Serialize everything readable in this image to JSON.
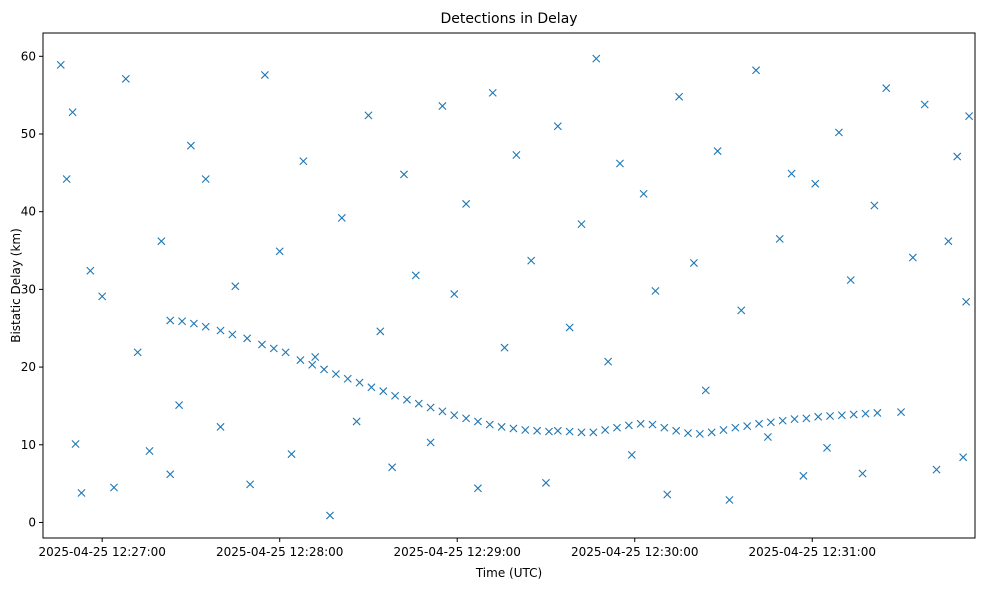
{
  "chart_data": {
    "type": "scatter",
    "title": "Detections in Delay",
    "xlabel": "Time (UTC)",
    "ylabel": "Bistatic Delay (km)",
    "x_ticks": [
      "2025-04-25 12:27:00",
      "2025-04-25 12:28:00",
      "2025-04-25 12:29:00",
      "2025-04-25 12:30:00",
      "2025-04-25 12:31:00"
    ],
    "y_ticks": [
      0,
      10,
      20,
      30,
      40,
      50,
      60
    ],
    "xlim": [
      "2025-04-25 12:26:40",
      "2025-04-25 12:31:55"
    ],
    "ylim": [
      -2,
      63
    ],
    "grid": false,
    "marker": "x",
    "color": "#1f77b4",
    "series": [
      {
        "points": [
          [
            "2025-04-25 12:26:46",
            58.9
          ],
          [
            "2025-04-25 12:26:48",
            44.2
          ],
          [
            "2025-04-25 12:26:50",
            52.8
          ],
          [
            "2025-04-25 12:26:51",
            10.1
          ],
          [
            "2025-04-25 12:26:53",
            3.8
          ],
          [
            "2025-04-25 12:26:56",
            32.4
          ],
          [
            "2025-04-25 12:27:00",
            29.1
          ],
          [
            "2025-04-25 12:27:04",
            4.5
          ],
          [
            "2025-04-25 12:27:08",
            57.1
          ],
          [
            "2025-04-25 12:27:12",
            21.9
          ],
          [
            "2025-04-25 12:27:16",
            9.2
          ],
          [
            "2025-04-25 12:27:20",
            36.2
          ],
          [
            "2025-04-25 12:27:23",
            6.2
          ],
          [
            "2025-04-25 12:27:26",
            15.1
          ],
          [
            "2025-04-25 12:27:30",
            48.5
          ],
          [
            "2025-04-25 12:27:35",
            44.2
          ],
          [
            "2025-04-25 12:27:40",
            12.3
          ],
          [
            "2025-04-25 12:27:45",
            30.4
          ],
          [
            "2025-04-25 12:27:50",
            4.9
          ],
          [
            "2025-04-25 12:27:55",
            57.6
          ],
          [
            "2025-04-25 12:28:00",
            34.9
          ],
          [
            "2025-04-25 12:28:04",
            8.8
          ],
          [
            "2025-04-25 12:28:08",
            46.5
          ],
          [
            "2025-04-25 12:28:12",
            21.3
          ],
          [
            "2025-04-25 12:28:17",
            0.9
          ],
          [
            "2025-04-25 12:28:21",
            39.2
          ],
          [
            "2025-04-25 12:28:26",
            13.0
          ],
          [
            "2025-04-25 12:28:30",
            52.4
          ],
          [
            "2025-04-25 12:28:34",
            24.6
          ],
          [
            "2025-04-25 12:28:38",
            7.1
          ],
          [
            "2025-04-25 12:28:42",
            44.8
          ],
          [
            "2025-04-25 12:28:46",
            31.8
          ],
          [
            "2025-04-25 12:28:51",
            10.3
          ],
          [
            "2025-04-25 12:28:55",
            53.6
          ],
          [
            "2025-04-25 12:28:59",
            29.4
          ],
          [
            "2025-04-25 12:29:03",
            41.0
          ],
          [
            "2025-04-25 12:29:07",
            4.4
          ],
          [
            "2025-04-25 12:29:12",
            55.3
          ],
          [
            "2025-04-25 12:29:16",
            22.5
          ],
          [
            "2025-04-25 12:29:20",
            47.3
          ],
          [
            "2025-04-25 12:29:25",
            33.7
          ],
          [
            "2025-04-25 12:29:30",
            5.1
          ],
          [
            "2025-04-25 12:29:34",
            51.0
          ],
          [
            "2025-04-25 12:29:38",
            25.1
          ],
          [
            "2025-04-25 12:29:42",
            38.4
          ],
          [
            "2025-04-25 12:29:47",
            59.7
          ],
          [
            "2025-04-25 12:29:51",
            20.7
          ],
          [
            "2025-04-25 12:29:55",
            46.2
          ],
          [
            "2025-04-25 12:29:59",
            8.7
          ],
          [
            "2025-04-25 12:30:03",
            42.3
          ],
          [
            "2025-04-25 12:30:07",
            29.8
          ],
          [
            "2025-04-25 12:30:11",
            3.6
          ],
          [
            "2025-04-25 12:30:15",
            54.8
          ],
          [
            "2025-04-25 12:30:20",
            33.4
          ],
          [
            "2025-04-25 12:30:24",
            17.0
          ],
          [
            "2025-04-25 12:30:28",
            47.8
          ],
          [
            "2025-04-25 12:30:32",
            2.9
          ],
          [
            "2025-04-25 12:30:36",
            27.3
          ],
          [
            "2025-04-25 12:30:41",
            58.2
          ],
          [
            "2025-04-25 12:30:45",
            11.0
          ],
          [
            "2025-04-25 12:30:49",
            36.5
          ],
          [
            "2025-04-25 12:30:53",
            44.9
          ],
          [
            "2025-04-25 12:30:57",
            6.0
          ],
          [
            "2025-04-25 12:31:01",
            43.6
          ],
          [
            "2025-04-25 12:31:05",
            9.6
          ],
          [
            "2025-04-25 12:31:09",
            50.2
          ],
          [
            "2025-04-25 12:31:13",
            31.2
          ],
          [
            "2025-04-25 12:31:17",
            6.3
          ],
          [
            "2025-04-25 12:31:21",
            40.8
          ],
          [
            "2025-04-25 12:31:25",
            55.9
          ],
          [
            "2025-04-25 12:31:30",
            14.2
          ],
          [
            "2025-04-25 12:31:34",
            34.1
          ],
          [
            "2025-04-25 12:31:38",
            53.8
          ],
          [
            "2025-04-25 12:31:42",
            6.8
          ],
          [
            "2025-04-25 12:31:46",
            36.2
          ],
          [
            "2025-04-25 12:31:49",
            47.1
          ],
          [
            "2025-04-25 12:31:51",
            8.4
          ],
          [
            "2025-04-25 12:31:52",
            28.4
          ],
          [
            "2025-04-25 12:31:53",
            52.3
          ]
        ]
      },
      {
        "points": [
          [
            "2025-04-25 12:27:23",
            26.0
          ],
          [
            "2025-04-25 12:27:27",
            25.9
          ],
          [
            "2025-04-25 12:27:31",
            25.6
          ],
          [
            "2025-04-25 12:27:35",
            25.2
          ],
          [
            "2025-04-25 12:27:40",
            24.7
          ],
          [
            "2025-04-25 12:27:44",
            24.2
          ],
          [
            "2025-04-25 12:27:49",
            23.7
          ],
          [
            "2025-04-25 12:27:54",
            22.9
          ],
          [
            "2025-04-25 12:27:58",
            22.4
          ],
          [
            "2025-04-25 12:28:02",
            21.9
          ],
          [
            "2025-04-25 12:28:07",
            20.9
          ],
          [
            "2025-04-25 12:28:11",
            20.3
          ],
          [
            "2025-04-25 12:28:15",
            19.7
          ],
          [
            "2025-04-25 12:28:19",
            19.1
          ],
          [
            "2025-04-25 12:28:23",
            18.5
          ],
          [
            "2025-04-25 12:28:27",
            18.0
          ],
          [
            "2025-04-25 12:28:31",
            17.4
          ],
          [
            "2025-04-25 12:28:35",
            16.9
          ],
          [
            "2025-04-25 12:28:39",
            16.3
          ],
          [
            "2025-04-25 12:28:43",
            15.8
          ],
          [
            "2025-04-25 12:28:47",
            15.3
          ],
          [
            "2025-04-25 12:28:51",
            14.8
          ],
          [
            "2025-04-25 12:28:55",
            14.3
          ],
          [
            "2025-04-25 12:28:59",
            13.8
          ],
          [
            "2025-04-25 12:29:03",
            13.4
          ],
          [
            "2025-04-25 12:29:07",
            13.0
          ],
          [
            "2025-04-25 12:29:11",
            12.6
          ],
          [
            "2025-04-25 12:29:15",
            12.3
          ],
          [
            "2025-04-25 12:29:19",
            12.1
          ],
          [
            "2025-04-25 12:29:23",
            11.9
          ],
          [
            "2025-04-25 12:29:27",
            11.8
          ],
          [
            "2025-04-25 12:29:31",
            11.7
          ],
          [
            "2025-04-25 12:29:34",
            11.8
          ],
          [
            "2025-04-25 12:29:38",
            11.7
          ],
          [
            "2025-04-25 12:29:42",
            11.6
          ],
          [
            "2025-04-25 12:29:46",
            11.6
          ],
          [
            "2025-04-25 12:29:50",
            11.9
          ],
          [
            "2025-04-25 12:29:54",
            12.2
          ],
          [
            "2025-04-25 12:29:58",
            12.5
          ],
          [
            "2025-04-25 12:30:02",
            12.7
          ],
          [
            "2025-04-25 12:30:06",
            12.6
          ],
          [
            "2025-04-25 12:30:10",
            12.2
          ],
          [
            "2025-04-25 12:30:14",
            11.8
          ],
          [
            "2025-04-25 12:30:18",
            11.5
          ],
          [
            "2025-04-25 12:30:22",
            11.4
          ],
          [
            "2025-04-25 12:30:26",
            11.6
          ],
          [
            "2025-04-25 12:30:30",
            11.9
          ],
          [
            "2025-04-25 12:30:34",
            12.2
          ],
          [
            "2025-04-25 12:30:38",
            12.4
          ],
          [
            "2025-04-25 12:30:42",
            12.7
          ],
          [
            "2025-04-25 12:30:46",
            12.9
          ],
          [
            "2025-04-25 12:30:50",
            13.1
          ],
          [
            "2025-04-25 12:30:54",
            13.3
          ],
          [
            "2025-04-25 12:30:58",
            13.4
          ],
          [
            "2025-04-25 12:31:02",
            13.6
          ],
          [
            "2025-04-25 12:31:06",
            13.7
          ],
          [
            "2025-04-25 12:31:10",
            13.8
          ],
          [
            "2025-04-25 12:31:14",
            13.9
          ],
          [
            "2025-04-25 12:31:18",
            14.0
          ],
          [
            "2025-04-25 12:31:22",
            14.1
          ]
        ]
      }
    ]
  }
}
